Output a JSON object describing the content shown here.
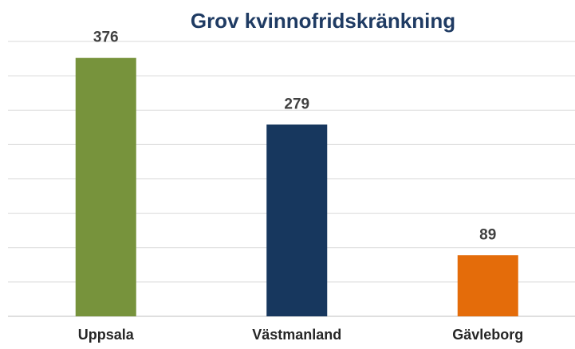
{
  "chart_data": {
    "type": "bar",
    "title": "Grov kvinnofridskränkning",
    "categories": [
      "Uppsala",
      "Västmanland",
      "Gävleborg"
    ],
    "values": [
      376,
      279,
      89
    ],
    "colors": [
      "#77933c",
      "#17375e",
      "#e46c0a"
    ],
    "ylim": [
      0,
      400
    ],
    "yticks": [
      0,
      50,
      100,
      150,
      200,
      250,
      300,
      350,
      400
    ],
    "ytick_labels": false,
    "grid": true
  }
}
